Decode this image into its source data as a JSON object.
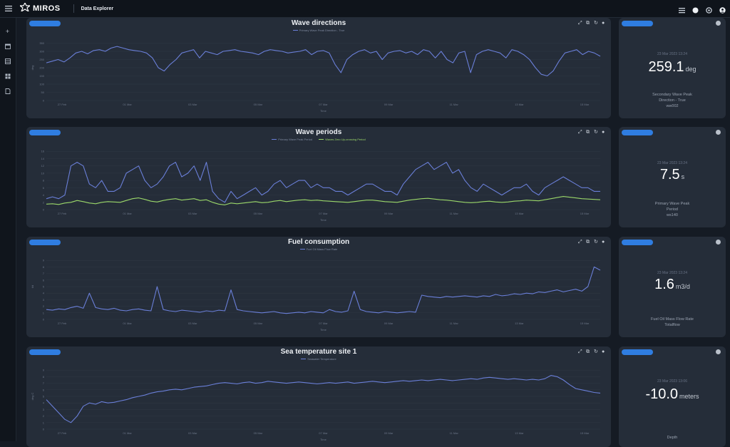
{
  "header": {
    "brand": "MIROS",
    "app_title": "Data Explorer"
  },
  "icons": {
    "menu": "hamburger-icon",
    "logo": "miros-logo-icon",
    "top_right": [
      "grid-icon",
      "moon-icon",
      "gear-icon",
      "user-icon"
    ],
    "sidebar": [
      "plus-icon",
      "calendar-icon",
      "table-icon",
      "dashboard-icon",
      "document-icon"
    ],
    "chart_tools": [
      "zoom-icon",
      "zoom-reset-icon",
      "restore-icon",
      "save-icon"
    ]
  },
  "colors": {
    "accent": "#2f7de1",
    "series_primary": "#6a7fd8",
    "series_secondary": "#9bd86a"
  },
  "charts": [
    {
      "title": "Wave directions",
      "legend": [
        "Primary Wave Peak Direction - True"
      ],
      "xlabel": "Time",
      "ylabel": "deg"
    },
    {
      "title": "Wave periods",
      "legend": [
        "Primary Wave Peak Period",
        "Waves Zero Up-crossing Period"
      ],
      "xlabel": "Time",
      "ylabel": ""
    },
    {
      "title": "Fuel consumption",
      "legend": [
        "Fuel Oil Mass Flow Rate"
      ],
      "xlabel": "Time",
      "ylabel": "t/d"
    },
    {
      "title": "Sea temperature site 1",
      "legend": [
        "Seawater Temperature"
      ],
      "xlabel": "Time",
      "ylabel": "deg C"
    }
  ],
  "kpis": [
    {
      "date": "23 Mar 2023 13:24",
      "value": "259.1",
      "unit": "deg",
      "label": [
        "Secondary Wave Peak",
        "Direction - True",
        "ww002"
      ]
    },
    {
      "date": "23 Mar 2023 13:24",
      "value": "7.5",
      "unit": "s",
      "label": [
        "Primary Wave Peak",
        "Period",
        "ws140"
      ]
    },
    {
      "date": "23 Mar 2023 13:24",
      "value": "1.6",
      "unit": "m3/d",
      "label": [
        "Fuel Oil Mass Flow Rate",
        "Totalflow"
      ]
    },
    {
      "date": "23 Mar 2023 13:06",
      "value": "-10.0",
      "unit": "meters",
      "label": [
        "Depth"
      ]
    }
  ],
  "x_ticks": [
    "27 Feb",
    "01 Mar",
    "03 Mar",
    "05 Mar",
    "07 Mar",
    "09 Mar",
    "11 Mar",
    "13 Mar",
    "15 Mar"
  ],
  "chart_data": [
    {
      "type": "line",
      "title": "Wave directions",
      "ylim": [
        0,
        400
      ],
      "yticks": [
        0,
        50,
        100,
        150,
        200,
        250,
        300,
        350
      ],
      "series": [
        {
          "name": "Primary Wave Peak Direction - True",
          "values": [
            230,
            240,
            250,
            235,
            260,
            290,
            300,
            285,
            305,
            310,
            300,
            320,
            330,
            320,
            310,
            305,
            300,
            290,
            260,
            200,
            180,
            220,
            250,
            290,
            300,
            310,
            260,
            300,
            290,
            280,
            300,
            305,
            310,
            300,
            295,
            290,
            280,
            300,
            310,
            305,
            300,
            290,
            295,
            300,
            310,
            280,
            300,
            305,
            290,
            220,
            170,
            250,
            280,
            300,
            310,
            290,
            300,
            250,
            290,
            300,
            305,
            290,
            300,
            280,
            310,
            300,
            260,
            300,
            250,
            230,
            290,
            300,
            170,
            280,
            300,
            310,
            300,
            290,
            260,
            310,
            300,
            280,
            250,
            200,
            160,
            150,
            180,
            240,
            290,
            300,
            310,
            280,
            300,
            290,
            270
          ]
        }
      ],
      "y_min": 0,
      "y_max": 400
    },
    {
      "type": "line",
      "title": "Wave periods",
      "ylim": [
        0,
        18
      ],
      "yticks": [
        0,
        2,
        4,
        6,
        8,
        10,
        12,
        14,
        16
      ],
      "series": [
        {
          "name": "Primary Wave Peak Period",
          "values": [
            3,
            3.5,
            3,
            4,
            12,
            13,
            12,
            7,
            6,
            8,
            5,
            5,
            6,
            10,
            11,
            12,
            8,
            6,
            7,
            9,
            12,
            13,
            9,
            10,
            12,
            8,
            13,
            5,
            3,
            2,
            5,
            3,
            4,
            5,
            6,
            4,
            5,
            7,
            8,
            6,
            7,
            8,
            8,
            6,
            7,
            6,
            6,
            5,
            5,
            4,
            5,
            6,
            7,
            7,
            6,
            5,
            5,
            4,
            7,
            9,
            11,
            12,
            13,
            11,
            12,
            13,
            10,
            11,
            8,
            6,
            5,
            7,
            6,
            5,
            4,
            5,
            6,
            6,
            7,
            5,
            4,
            6,
            7,
            8,
            9,
            8,
            7,
            6,
            6,
            5,
            5
          ]
        },
        {
          "name": "Waves Zero Up-crossing Period",
          "values": [
            1.5,
            1.6,
            1.4,
            1.8,
            2,
            2.5,
            2.2,
            1.8,
            1.6,
            2,
            2.2,
            2.1,
            2,
            2.5,
            3,
            3.2,
            2.8,
            2.3,
            2.1,
            2.5,
            2.8,
            3,
            2.6,
            2.8,
            3,
            2.5,
            2.7,
            2,
            1.5,
            1.3,
            1.8,
            1.6,
            1.8,
            2,
            2.2,
            1.9,
            2,
            2.3,
            2.5,
            2.2,
            2.4,
            2.6,
            2.7,
            2.5,
            2.6,
            2.4,
            2.3,
            2.2,
            2.1,
            2,
            2.2,
            2.4,
            2.6,
            2.6,
            2.4,
            2.2,
            2.1,
            2,
            2.3,
            2.6,
            2.8,
            3,
            3.1,
            2.9,
            2.7,
            2.6,
            2.4,
            2.2,
            2,
            1.9,
            2,
            2.2,
            2.3,
            2.1,
            2,
            2.1,
            2.3,
            2.4,
            2.6,
            2.5,
            2.4,
            2.7,
            3,
            3.3,
            3.6,
            3.4,
            3.2,
            3,
            2.9,
            2.8,
            2.7
          ]
        }
      ]
    },
    {
      "type": "line",
      "title": "Fuel consumption",
      "ylim": [
        0,
        10
      ],
      "yticks": [
        0,
        1,
        2,
        3,
        4,
        5,
        6,
        7,
        8,
        9
      ],
      "series": [
        {
          "name": "Fuel Oil Mass Flow Rate",
          "values": [
            1.5,
            1.4,
            1.6,
            1.5,
            1.8,
            2,
            1.7,
            4,
            1.8,
            1.6,
            1.5,
            1.7,
            1.4,
            1.3,
            1.5,
            1.6,
            1.4,
            1.3,
            5,
            1.5,
            1.3,
            1.2,
            1.4,
            1.3,
            1.2,
            1.1,
            1.3,
            1.2,
            1.4,
            1.3,
            4.5,
            1.5,
            1.3,
            1.2,
            1.1,
            1.0,
            1.1,
            1.2,
            1.0,
            0.9,
            1.0,
            1.1,
            1.0,
            1.2,
            1.1,
            1.0,
            1.5,
            1.2,
            1.1,
            1.3,
            4.3,
            1.5,
            1.2,
            1.1,
            1.0,
            1.2,
            1.1,
            1.0,
            1.1,
            1.2,
            1.1,
            3.7,
            3.5,
            3.4,
            3.3,
            3.5,
            3.4,
            3.5,
            3.6,
            3.5,
            3.4,
            3.6,
            3.5,
            3.8,
            3.6,
            3.7,
            3.9,
            3.8,
            4,
            3.9,
            4.2,
            4.1,
            4.3,
            4.5,
            4.2,
            4.4,
            4.6,
            4.3,
            5,
            8,
            7.5
          ]
        }
      ]
    },
    {
      "type": "line",
      "title": "Sea temperature site 1",
      "ylim": [
        0,
        10
      ],
      "yticks": [
        0,
        1,
        2,
        3,
        4,
        5,
        6,
        7,
        8,
        9
      ],
      "series": [
        {
          "name": "Seawater Temperature",
          "values": [
            4.5,
            3.5,
            2.5,
            1.5,
            1.0,
            2.0,
            3.5,
            4.0,
            3.8,
            4.2,
            4.0,
            4.1,
            4.3,
            4.5,
            4.8,
            5.0,
            5.2,
            5.5,
            5.7,
            5.8,
            6.0,
            6.1,
            6.0,
            6.2,
            6.4,
            6.5,
            6.6,
            6.8,
            7.0,
            7.1,
            7.0,
            6.9,
            7.1,
            7.2,
            7.0,
            7.1,
            7.3,
            7.2,
            7.1,
            7.0,
            7.1,
            7.2,
            7.1,
            7.0,
            6.9,
            7.0,
            7.1,
            7.0,
            7.1,
            7.2,
            7.0,
            7.1,
            7.2,
            7.3,
            7.2,
            7.1,
            7.2,
            7.3,
            7.4,
            7.3,
            7.4,
            7.5,
            7.4,
            7.5,
            7.6,
            7.5,
            7.4,
            7.5,
            7.6,
            7.7,
            7.6,
            7.8,
            7.9,
            7.8,
            7.7,
            7.6,
            7.7,
            7.6,
            7.5,
            7.6,
            7.5,
            7.7,
            8.2,
            8.0,
            7.5,
            6.8,
            6.2,
            6.0,
            5.8,
            5.6,
            5.5
          ]
        }
      ]
    }
  ]
}
